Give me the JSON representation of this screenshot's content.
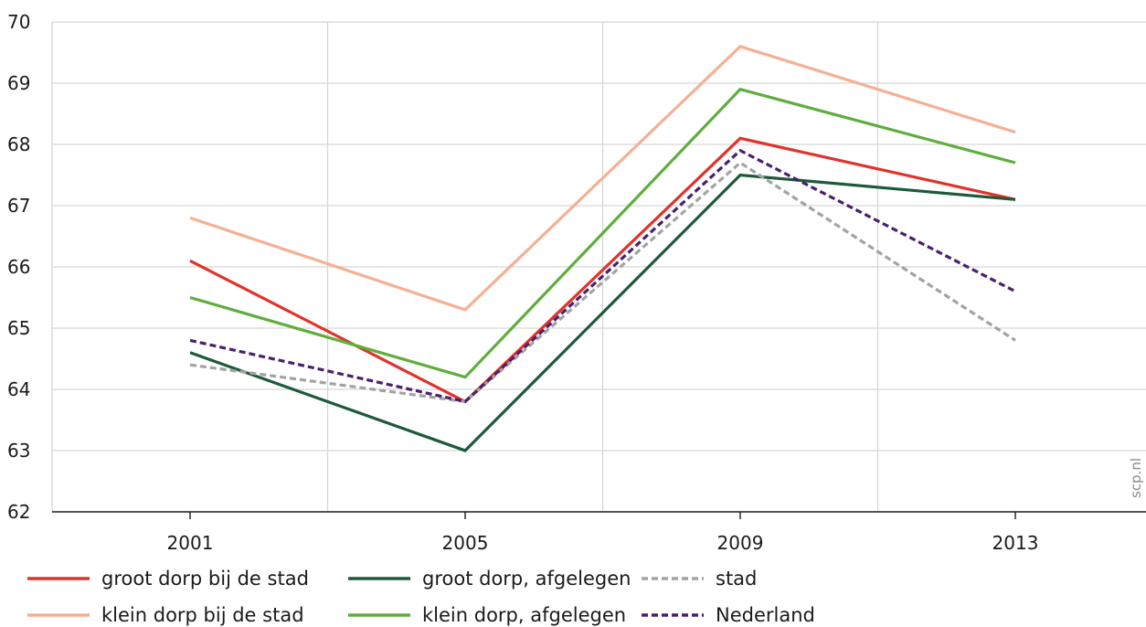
{
  "chart_data": {
    "type": "line",
    "x": [
      "2001",
      "2005",
      "2009",
      "2013"
    ],
    "ylim": [
      62,
      70
    ],
    "yticks": [
      "62",
      "63",
      "64",
      "65",
      "66",
      "67",
      "68",
      "69",
      "70"
    ],
    "grid": true,
    "legend_position": "bottom",
    "series": [
      {
        "name": "groot dorp bij de stad",
        "values": [
          66.1,
          63.8,
          68.1,
          67.1
        ],
        "color": "#e0332b",
        "dashed": false
      },
      {
        "name": "klein dorp bij de stad",
        "values": [
          66.8,
          65.3,
          69.6,
          68.2
        ],
        "color": "#f5b094",
        "dashed": false
      },
      {
        "name": "groot dorp, afgelegen",
        "values": [
          64.6,
          63.0,
          67.5,
          67.1
        ],
        "color": "#1d5a3a",
        "dashed": false
      },
      {
        "name": "klein dorp, afgelegen",
        "values": [
          65.5,
          64.2,
          68.9,
          67.7
        ],
        "color": "#5fae3d",
        "dashed": false
      },
      {
        "name": "stad",
        "values": [
          64.4,
          63.8,
          67.7,
          64.8
        ],
        "color": "#a3a3a3",
        "dashed": true
      },
      {
        "name": "Nederland",
        "values": [
          64.8,
          63.8,
          67.9,
          65.6
        ],
        "color": "#4a1f6e",
        "dashed": true
      }
    ],
    "watermark": "scp.nl"
  }
}
